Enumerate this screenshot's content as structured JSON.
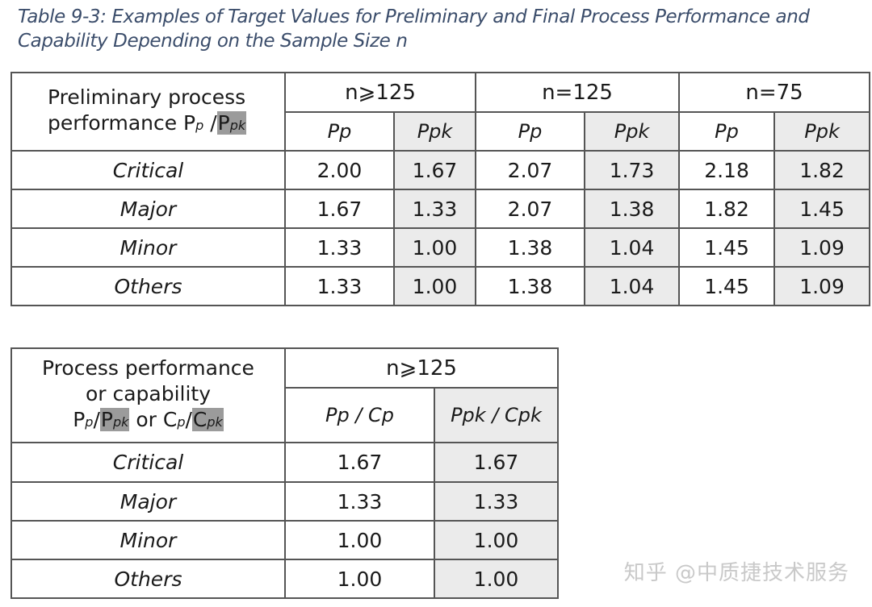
{
  "caption": "Table 9-3: Examples of Target Values for Preliminary and Final Process Performance and Capability Depending on the Sample Size n",
  "table1": {
    "title_line1": "Preliminary process",
    "title_line2": "performance P",
    "title_p_sub": "p",
    "title_sep": " /",
    "title_p2": "P",
    "title_pk_sub": "pk",
    "groups": [
      "n⩾125",
      "n=125",
      "n=75"
    ],
    "subheaders": [
      "Pp",
      "Ppk",
      "Pp",
      "Ppk",
      "Pp",
      "Ppk"
    ],
    "rows": [
      {
        "label": "Critical",
        "values": [
          "2.00",
          "1.67",
          "2.07",
          "1.73",
          "2.18",
          "1.82"
        ]
      },
      {
        "label": "Major",
        "values": [
          "1.67",
          "1.33",
          "2.07",
          "1.38",
          "1.82",
          "1.45"
        ]
      },
      {
        "label": "Minor",
        "values": [
          "1.33",
          "1.00",
          "1.38",
          "1.04",
          "1.45",
          "1.09"
        ]
      },
      {
        "label": "Others",
        "values": [
          "1.33",
          "1.00",
          "1.38",
          "1.04",
          "1.45",
          "1.09"
        ]
      }
    ]
  },
  "table2": {
    "title_line1": "Process performance",
    "title_line2": "or capability",
    "t_p": "P",
    "t_p_sub": "p",
    "t_slash": "/",
    "t_p2": "P",
    "t_pk_sub": "pk",
    "t_or": " or ",
    "t_c": "C",
    "t_c_sub": "p",
    "t_slash2": "/",
    "t_c2": "C",
    "t_ck_sub": "pk",
    "group": "n⩾125",
    "subheaders": [
      "Pp / Cp",
      "Ppk / Cpk"
    ],
    "rows": [
      {
        "label": "Critical",
        "values": [
          "1.67",
          "1.67"
        ]
      },
      {
        "label": "Major",
        "values": [
          "1.33",
          "1.33"
        ]
      },
      {
        "label": "Minor",
        "values": [
          "1.00",
          "1.00"
        ]
      },
      {
        "label": "Others",
        "values": [
          "1.00",
          "1.00"
        ]
      }
    ]
  },
  "watermark": "知乎 @中质捷技术服务"
}
